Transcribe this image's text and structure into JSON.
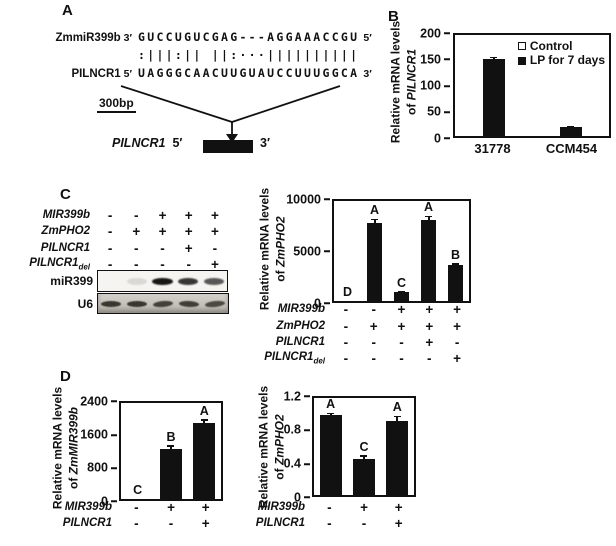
{
  "figure": {
    "background": "#ffffff",
    "ink": "#111111"
  },
  "panels": {
    "a": {
      "label": "A",
      "alignment": {
        "top_name": "ZmmiR399b",
        "top_left_end": "3′",
        "top_seq": "GUCCUGUCGAG---AGGAAACCGU",
        "top_right_end": "5′",
        "match_symbols": ":|||:|| ||:···||||||||||",
        "bottom_name": "PILNCR1",
        "bottom_left_end": "5′",
        "bottom_seq": "UAGGGCAACUUGUAUCCUUUGGCA",
        "bottom_right_end": "3′"
      },
      "scale_label": "300bp",
      "transcript": {
        "name": "PILNCR1",
        "left_end": "5′",
        "right_end": "3′"
      }
    },
    "b": {
      "label": "B"
    },
    "c": {
      "label": "C",
      "gel": {
        "rows": [
          {
            "label": "MIR399b",
            "symbols": [
              "-",
              "-",
              "+",
              "+",
              "+"
            ]
          },
          {
            "label": "ZmPHO2",
            "symbols": [
              "-",
              "+",
              "+",
              "+",
              "+"
            ]
          },
          {
            "label": "PILNCR1",
            "symbols": [
              "-",
              "-",
              "-",
              "+",
              "-"
            ]
          },
          {
            "label": "PILNCR1",
            "sub": "del",
            "symbols": [
              "-",
              "-",
              "-",
              "-",
              "+"
            ]
          }
        ],
        "blots": [
          {
            "label": "miR399",
            "bands": [
              0,
              0.12,
              1,
              0.85,
              0.7
            ]
          },
          {
            "label": "U6",
            "bands": [
              0.95,
              0.95,
              0.88,
              0.9,
              0.82
            ]
          }
        ]
      }
    },
    "d": {
      "label": "D"
    }
  },
  "chart_data": [
    {
      "type": "bar",
      "panel": "B",
      "ylabel_line1": "Relative mRNA levels",
      "ylabel_line2_prefix": "of ",
      "ylabel_line2_gene": "PILNCR1",
      "categories": [
        "31778",
        "CCM454"
      ],
      "series": [
        {
          "name": "Control",
          "values": [
            0,
            0
          ]
        },
        {
          "name": "LP for 7 days",
          "values": [
            153,
            18
          ]
        }
      ],
      "values": [
        153,
        18
      ],
      "errors": [
        4,
        2
      ],
      "yticks": [
        0,
        50,
        100,
        150,
        200
      ],
      "ylim": [
        0,
        200
      ],
      "legend": [
        {
          "label": "Control",
          "swatch": "open"
        },
        {
          "label": "LP for 7 days",
          "swatch": "filled"
        }
      ]
    },
    {
      "type": "bar",
      "panel": "C",
      "ylabel_line1": "Relative mRNA levels",
      "ylabel_line2_prefix": "of ",
      "ylabel_line2_gene": "ZmPHO2",
      "values": [
        30,
        7800,
        900,
        8200,
        3600
      ],
      "errors": [
        0,
        420,
        70,
        480,
        180
      ],
      "letters": [
        "D",
        "A",
        "C",
        "A",
        "B"
      ],
      "yticks": [
        0,
        5000,
        10000
      ],
      "ylim": [
        0,
        10000
      ],
      "matrix": [
        {
          "label": "MIR399b",
          "symbols": [
            "-",
            "-",
            "+",
            "+",
            "+"
          ]
        },
        {
          "label": "ZmPHO2",
          "symbols": [
            "-",
            "+",
            "+",
            "+",
            "+"
          ]
        },
        {
          "label": "PILNCR1",
          "symbols": [
            "-",
            "-",
            "-",
            "+",
            "-"
          ]
        },
        {
          "label": "PILNCR1",
          "sub": "del",
          "symbols": [
            "-",
            "-",
            "-",
            "-",
            "+"
          ]
        }
      ]
    },
    {
      "type": "bar",
      "panel": "D-left",
      "ylabel_line1": "Relative mRNA levels",
      "ylabel_line2_prefix": "of ",
      "ylabel_line2_gene": "ZmMIR399b",
      "values": [
        12,
        1240,
        1900
      ],
      "errors": [
        0,
        110,
        90
      ],
      "letters": [
        "C",
        "B",
        "A"
      ],
      "yticks": [
        0,
        800,
        1600,
        2400
      ],
      "ylim": [
        0,
        2400
      ],
      "matrix": [
        {
          "label": "MIR399b",
          "symbols": [
            "-",
            "+",
            "+"
          ]
        },
        {
          "label": "PILNCR1",
          "symbols": [
            "-",
            "-",
            "+"
          ]
        }
      ]
    },
    {
      "type": "bar",
      "panel": "D-right",
      "ylabel_line1": "Relative mRNA levels",
      "ylabel_line2_prefix": "of ",
      "ylabel_line2_gene": "ZmPHO2",
      "values": [
        1.02,
        0.44,
        0.92
      ],
      "errors": [
        0.03,
        0.05,
        0.06
      ],
      "letters": [
        "A",
        "C",
        "A"
      ],
      "yticks": [
        0,
        0.4,
        0.8,
        1.2
      ],
      "ylim": [
        0,
        1.2
      ],
      "matrix": [
        {
          "label": "MIR399b",
          "symbols": [
            "-",
            "+",
            "+"
          ]
        },
        {
          "label": "PILNCR1",
          "symbols": [
            "-",
            "-",
            "+"
          ]
        }
      ]
    }
  ]
}
